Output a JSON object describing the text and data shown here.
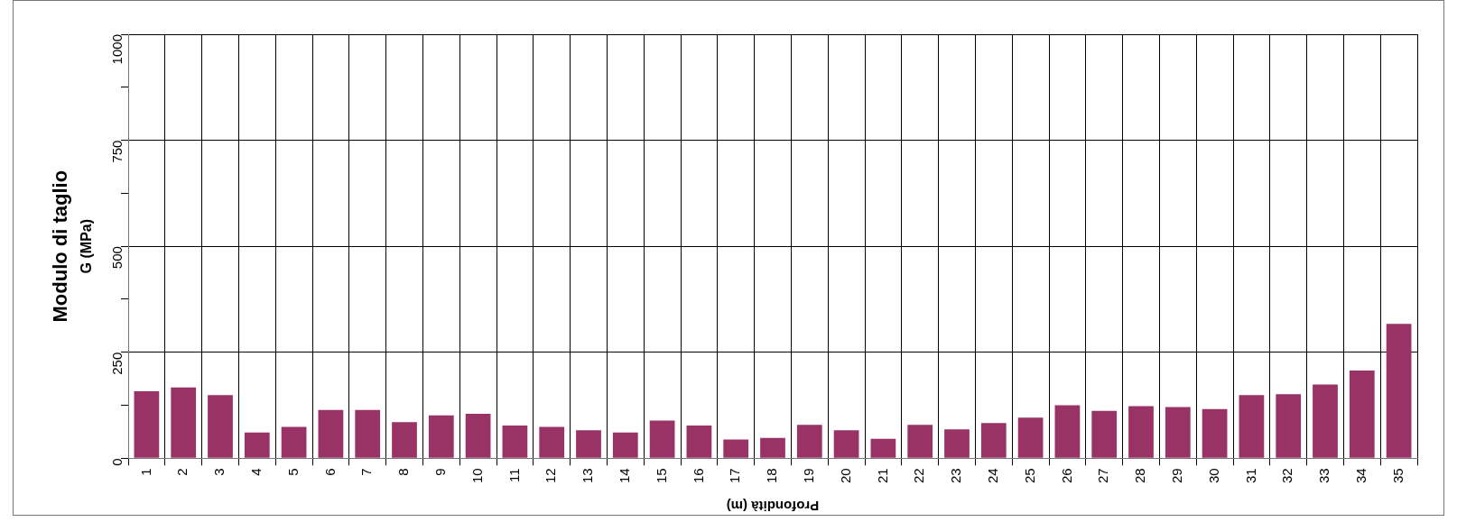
{
  "chart_data": {
    "type": "bar",
    "xlabel": "Profondità (m)",
    "ylabel": "Modulo di taglio\nG (MPa)",
    "categories": [
      "1",
      "2",
      "3",
      "4",
      "5",
      "6",
      "7",
      "8",
      "9",
      "10",
      "11",
      "12",
      "13",
      "14",
      "15",
      "16",
      "17",
      "18",
      "19",
      "20",
      "21",
      "22",
      "23",
      "24",
      "25",
      "26",
      "27",
      "28",
      "29",
      "30",
      "31",
      "32",
      "33",
      "34",
      "35"
    ],
    "values": [
      158,
      167,
      149,
      61,
      74,
      114,
      114,
      85,
      101,
      105,
      77,
      74,
      66,
      61,
      89,
      77,
      44,
      48,
      79,
      66,
      46,
      79,
      68,
      83,
      96,
      125,
      112,
      123,
      121,
      116,
      149,
      151,
      174,
      207,
      317
    ],
    "color": "#993366",
    "ylim": [
      0,
      1000
    ],
    "yticks": [
      0,
      {
        "value": 125,
        "label": null
      },
      250,
      {
        "value": 375,
        "label": null
      },
      500,
      {
        "value": 625,
        "label": null
      },
      750,
      {
        "value": 875,
        "label": null
      },
      1000
    ],
    "grid": true,
    "legend": false
  }
}
